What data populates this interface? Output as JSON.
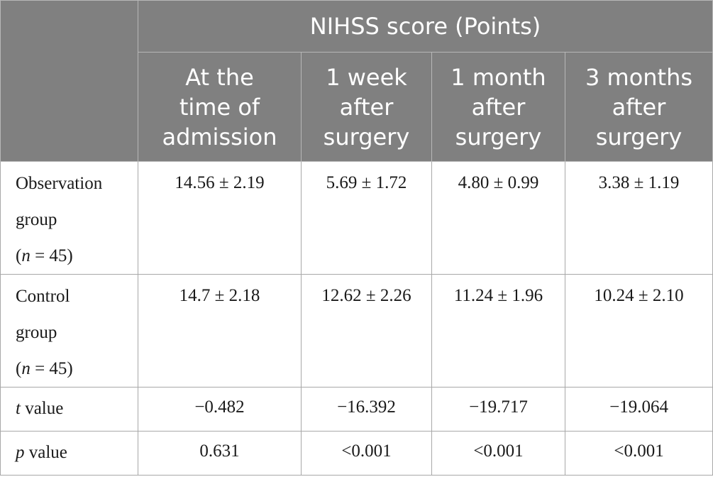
{
  "header": {
    "group_title": "NIHSS score (Points)",
    "columns": [
      [
        "At the",
        "time of",
        "admission"
      ],
      [
        "1 week",
        "after",
        "surgery"
      ],
      [
        "1 month",
        "after",
        "surgery"
      ],
      [
        "3 months",
        "after",
        "surgery"
      ]
    ]
  },
  "rows": {
    "observation": {
      "label1": "Observation",
      "label2": "group",
      "n_var": "n",
      "n_rest": " = 45)",
      "values": [
        "14.56 ± 2.19",
        "5.69 ± 1.72",
        "4.80 ± 0.99",
        "3.38 ± 1.19"
      ]
    },
    "control": {
      "label1": "Control",
      "label2": "group",
      "n_var": "n",
      "n_rest": " = 45)",
      "values": [
        "14.7 ± 2.18",
        "12.62 ± 2.26",
        "11.24 ± 1.96",
        "10.24 ± 2.10"
      ]
    },
    "t": {
      "var": "t",
      "label": " value",
      "values": [
        "−0.482",
        "−16.392",
        "−19.717",
        "−19.064"
      ]
    },
    "p": {
      "var": "p",
      "label": " value",
      "values": [
        "0.631",
        "<0.001",
        "<0.001",
        "<0.001"
      ]
    }
  }
}
